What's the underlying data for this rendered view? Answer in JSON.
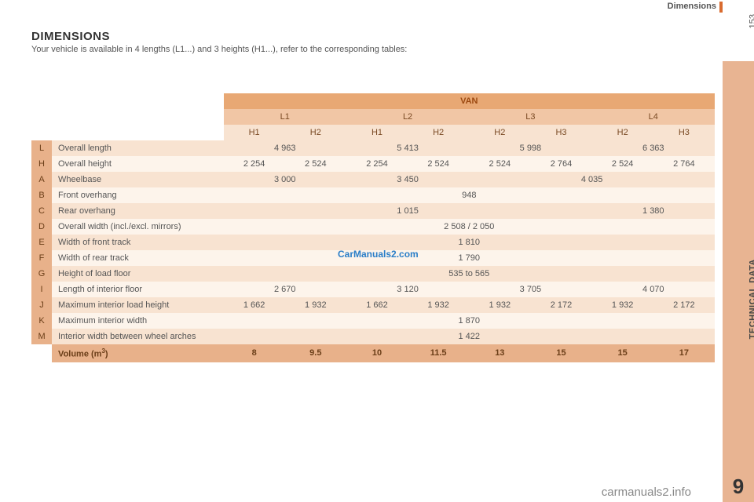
{
  "header": {
    "section": "Dimensions",
    "page": "153",
    "chapter": "9",
    "side_label": "TECHNICAL DATA"
  },
  "title": "DIMENSIONS",
  "subtitle": "Your vehicle is available in 4 lengths (L1...) and 3 heights (H1...), refer to the corresponding tables:",
  "watermark": "CarManuals2.com",
  "footer": "carmanuals2.info",
  "table": {
    "van_label": "VAN",
    "l_headers": [
      "L1",
      "L2",
      "L3",
      "L4"
    ],
    "h_headers": [
      "H1",
      "H2",
      "H1",
      "H2",
      "H2",
      "H3",
      "H2",
      "H3"
    ],
    "rows": [
      {
        "key": "L",
        "label": "Overall length",
        "cells": [
          {
            "v": "4 963",
            "span": 2
          },
          {
            "v": "5 413",
            "span": 2
          },
          {
            "v": "5 998",
            "span": 2
          },
          {
            "v": "6 363",
            "span": 2
          }
        ],
        "band": "a"
      },
      {
        "key": "H",
        "label": "Overall height",
        "cells": [
          {
            "v": "2 254"
          },
          {
            "v": "2 524"
          },
          {
            "v": "2 254"
          },
          {
            "v": "2 524"
          },
          {
            "v": "2 524"
          },
          {
            "v": "2 764"
          },
          {
            "v": "2 524"
          },
          {
            "v": "2 764"
          }
        ],
        "band": "b"
      },
      {
        "key": "A",
        "label": "Wheelbase",
        "cells": [
          {
            "v": "3 000",
            "span": 2
          },
          {
            "v": "3 450",
            "span": 2
          },
          {
            "v": "4 035",
            "span": 4
          }
        ],
        "band": "a"
      },
      {
        "key": "B",
        "label": "Front overhang",
        "cells": [
          {
            "v": "948",
            "span": 8
          }
        ],
        "band": "b"
      },
      {
        "key": "C",
        "label": "Rear overhang",
        "cells": [
          {
            "v": "1 015",
            "span": 6
          },
          {
            "v": "1 380",
            "span": 2
          }
        ],
        "band": "a"
      },
      {
        "key": "D",
        "label": "Overall width (incl./excl. mirrors)",
        "cells": [
          {
            "v": "2 508 / 2 050",
            "span": 8
          }
        ],
        "band": "b"
      },
      {
        "key": "E",
        "label": "Width of front track",
        "cells": [
          {
            "v": "1 810",
            "span": 8
          }
        ],
        "band": "a"
      },
      {
        "key": "F",
        "label": "Width of rear track",
        "cells": [
          {
            "v": "1 790",
            "span": 8
          }
        ],
        "band": "b"
      },
      {
        "key": "G",
        "label": "Height of load floor",
        "cells": [
          {
            "v": "535 to 565",
            "span": 8
          }
        ],
        "band": "a"
      },
      {
        "key": "I",
        "label": "Length of interior floor",
        "cells": [
          {
            "v": "2 670",
            "span": 2
          },
          {
            "v": "3 120",
            "span": 2
          },
          {
            "v": "3 705",
            "span": 2
          },
          {
            "v": "4 070",
            "span": 2
          }
        ],
        "band": "b"
      },
      {
        "key": "J",
        "label": "Maximum interior load height",
        "cells": [
          {
            "v": "1 662"
          },
          {
            "v": "1 932"
          },
          {
            "v": "1 662"
          },
          {
            "v": "1 932"
          },
          {
            "v": "1 932"
          },
          {
            "v": "2 172"
          },
          {
            "v": "1 932"
          },
          {
            "v": "2 172"
          }
        ],
        "band": "a"
      },
      {
        "key": "K",
        "label": "Maximum interior width",
        "cells": [
          {
            "v": "1 870",
            "span": 8
          }
        ],
        "band": "b"
      },
      {
        "key": "M",
        "label": "Interior width between wheel arches",
        "cells": [
          {
            "v": "1 422",
            "span": 8
          }
        ],
        "band": "a"
      }
    ],
    "volume": {
      "label": "Volume (m",
      "sup": "3",
      "label_end": ")",
      "cells": [
        "8",
        "9.5",
        "10",
        "11.5",
        "13",
        "15",
        "15",
        "17"
      ]
    }
  },
  "colors": {
    "accent": "#d96b2f",
    "tab_bg": "#e8b492",
    "hdr_van": "#e8a874",
    "hdr_l": "#f1c6a5",
    "hdr_h": "#f8e3d1",
    "band_a": "#f8e3d1",
    "band_b": "#fdf4eb",
    "key_cell": "#e8b18a"
  }
}
